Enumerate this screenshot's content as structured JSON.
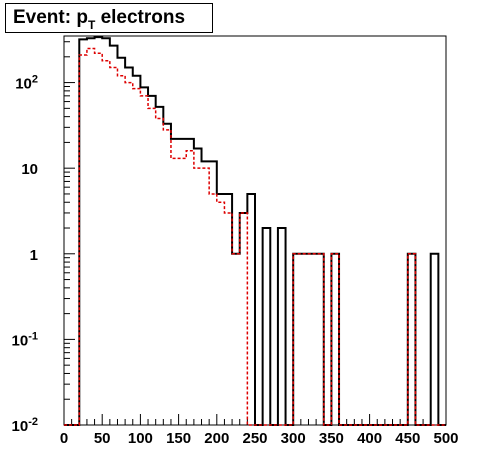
{
  "title": {
    "prefix": "Event: p",
    "subscript": "T",
    "suffix": " electrons"
  },
  "chart_data": {
    "type": "histogram",
    "title": "Event: p_T electrons",
    "xlim": [
      0,
      500
    ],
    "ylim": [
      0.01,
      350
    ],
    "y_scale": "log",
    "bin_width": 10,
    "x_tick_labels": [
      "0",
      "50",
      "100",
      "150",
      "200",
      "250",
      "300",
      "350",
      "400",
      "450",
      "500"
    ],
    "y_tick_labels": [
      {
        "base": "10",
        "exp": "-2",
        "value": 0.01
      },
      {
        "base": "10",
        "exp": "-1",
        "value": 0.1
      },
      {
        "base": "1",
        "exp": "",
        "value": 1
      },
      {
        "base": "10",
        "exp": "",
        "value": 10
      },
      {
        "base": "10",
        "exp": "2",
        "value": 100
      }
    ],
    "series": [
      {
        "color": "#000000",
        "style": "solid",
        "values": [
          0,
          0,
          320,
          330,
          340,
          330,
          270,
          195,
          150,
          120,
          88,
          70,
          52,
          33,
          22,
          22,
          22,
          17,
          12,
          12,
          5,
          5,
          1,
          3,
          5,
          0,
          2,
          0,
          2,
          0,
          1,
          1,
          1,
          1,
          0,
          1,
          0,
          0,
          0,
          0,
          0,
          0,
          0,
          0,
          0,
          1,
          0,
          0,
          1,
          0
        ]
      },
      {
        "color": "#dd0000",
        "style": "dashed",
        "values": [
          0,
          0,
          210,
          250,
          220,
          180,
          150,
          120,
          100,
          85,
          70,
          50,
          38,
          28,
          13,
          13,
          16,
          10,
          10,
          5,
          4,
          3,
          1,
          3,
          0,
          0,
          0,
          0,
          0,
          0,
          1,
          1,
          1,
          1,
          0,
          1,
          0,
          0,
          0,
          0,
          0,
          0,
          0,
          0,
          0,
          1,
          0,
          0,
          0,
          0
        ]
      }
    ]
  }
}
